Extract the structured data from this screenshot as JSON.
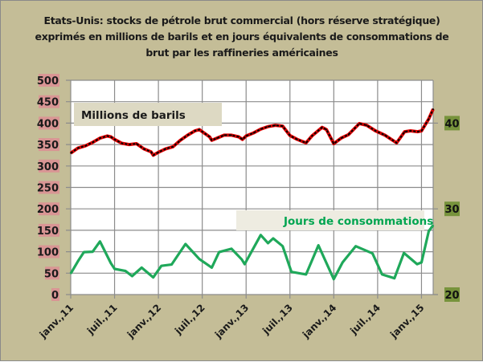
{
  "chart_data": {
    "type": "line",
    "title_lines": [
      "Etats-Unis: stocks de pétrole brut commercial (hors réserve stratégique)",
      "exprimés en millions de barils et en jours équivalents de consommations de",
      "brut par les raffineries  américaines"
    ],
    "x_unit": "months since janv. 2011",
    "x_range": [
      0,
      49.6
    ],
    "x_ticks": [
      {
        "x": 0,
        "label": "janv.,11"
      },
      {
        "x": 6,
        "label": "juil.,11"
      },
      {
        "x": 12,
        "label": "janv.,12"
      },
      {
        "x": 18,
        "label": "juil.,12"
      },
      {
        "x": 24,
        "label": "janv.,13"
      },
      {
        "x": 30,
        "label": "juil.,13"
      },
      {
        "x": 36,
        "label": "janv.,14"
      },
      {
        "x": 42,
        "label": "juil.,14"
      },
      {
        "x": 48,
        "label": "janv.,15"
      }
    ],
    "y_left": {
      "range": [
        0,
        500
      ],
      "ticks": [
        "0",
        "50",
        "100",
        "150",
        "200",
        "250",
        "300",
        "350",
        "400",
        "450",
        "500"
      ],
      "tick_color": "#d99594"
    },
    "y_right": {
      "range": [
        20,
        45
      ],
      "ticks": [
        {
          "value": 20,
          "label": "20"
        },
        {
          "value": 30,
          "label": "30"
        },
        {
          "value": 40,
          "label": "40"
        }
      ],
      "tick_color": "#77933c"
    },
    "grid": true,
    "series": [
      {
        "name": "Millions de barils",
        "axis": "left",
        "color": "#e00000",
        "x": [
          0,
          1,
          2,
          3,
          4,
          5,
          5.5,
          6,
          7,
          8,
          9,
          10,
          11,
          11.3,
          12,
          13,
          14,
          15,
          16,
          17,
          17.6,
          18,
          19,
          19.3,
          20,
          21,
          22,
          23,
          23.5,
          24,
          25,
          26,
          27,
          28,
          29,
          30,
          31,
          32.2,
          33,
          34.4,
          35,
          36,
          37,
          38,
          39.5,
          40.5,
          41.7,
          43,
          44.6,
          45.7,
          46.5,
          47.5,
          48,
          49,
          49.6
        ],
        "values": [
          330,
          342,
          347,
          355,
          365,
          370,
          368,
          362,
          353,
          350,
          352,
          340,
          333,
          325,
          332,
          340,
          345,
          360,
          372,
          382,
          385,
          380,
          368,
          360,
          365,
          372,
          372,
          368,
          362,
          370,
          377,
          386,
          392,
          395,
          393,
          371,
          362,
          354,
          370,
          390,
          385,
          352,
          365,
          373,
          399,
          395,
          382,
          372,
          354,
          380,
          382,
          380,
          382,
          410,
          433
        ]
      },
      {
        "name": "Jours de consommations",
        "axis": "right",
        "color": "#1fa85a",
        "x": [
          0,
          1,
          1.8,
          3,
          4,
          5.5,
          6,
          7.5,
          8.4,
          9.7,
          11.3,
          12.4,
          13.8,
          15.7,
          17.6,
          19.3,
          20.3,
          22,
          23.4,
          23.8,
          26,
          27,
          27.7,
          29,
          30.2,
          32.2,
          33.9,
          36,
          37.2,
          39,
          41.3,
          42.6,
          44.3,
          45.6,
          47.4,
          48,
          49,
          49.6
        ],
        "values": [
          22.45,
          23.9,
          24.95,
          25.0,
          26.2,
          23.65,
          23.0,
          22.75,
          22.15,
          23.15,
          22.0,
          23.35,
          23.5,
          25.9,
          24.15,
          23.15,
          24.95,
          25.35,
          24.1,
          23.55,
          26.95,
          26.0,
          26.55,
          25.65,
          22.65,
          22.35,
          25.75,
          21.8,
          23.75,
          25.65,
          24.8,
          22.35,
          21.9,
          24.85,
          23.55,
          23.75,
          27.4,
          28.1
        ]
      }
    ],
    "legend": [
      {
        "label": "Millions de barils",
        "placement": "top-left"
      },
      {
        "label": "Jours de consommations",
        "placement": "middle-right"
      }
    ]
  }
}
